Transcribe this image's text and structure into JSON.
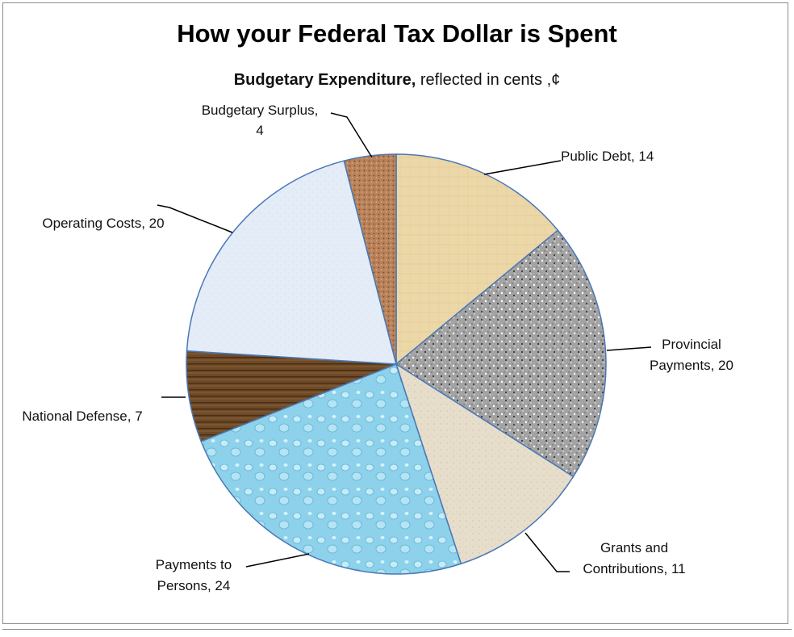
{
  "chart_data": {
    "type": "pie",
    "title": "How your Federal Tax Dollar is Spent",
    "subtitle_bold": "Budgetary Expenditure,",
    "subtitle_rest": " reflected in cents ,¢",
    "slices": [
      {
        "label_lines": [
          "Public Debt, 14"
        ],
        "category": "Public Debt",
        "value": 14,
        "color": "#ecd7a8"
      },
      {
        "label_lines": [
          "Provincial",
          "Payments, 20"
        ],
        "category": "Provincial Payments",
        "value": 20,
        "color": "#9a9a9a"
      },
      {
        "label_lines": [
          "Grants and",
          "Contributions, 11"
        ],
        "category": "Grants and Contributions",
        "value": 11,
        "color": "#e6ddcb"
      },
      {
        "label_lines": [
          "Payments to",
          "Persons, 24"
        ],
        "category": "Payments to Persons",
        "value": 24,
        "color": "#8dd1ea"
      },
      {
        "label_lines": [
          "National Defense, 7"
        ],
        "category": "National Defense",
        "value": 7,
        "color": "#6e4a28"
      },
      {
        "label_lines": [
          "Operating Costs, 20"
        ],
        "category": "Operating Costs",
        "value": 20,
        "color": "#e4ecf8"
      },
      {
        "label_lines": [
          "Budgetary Surplus,",
          "4"
        ],
        "category": "Budgetary Surplus",
        "value": 4,
        "color": "#b9825a"
      }
    ],
    "legend": "none",
    "data_labels": "outside with leader lines"
  }
}
